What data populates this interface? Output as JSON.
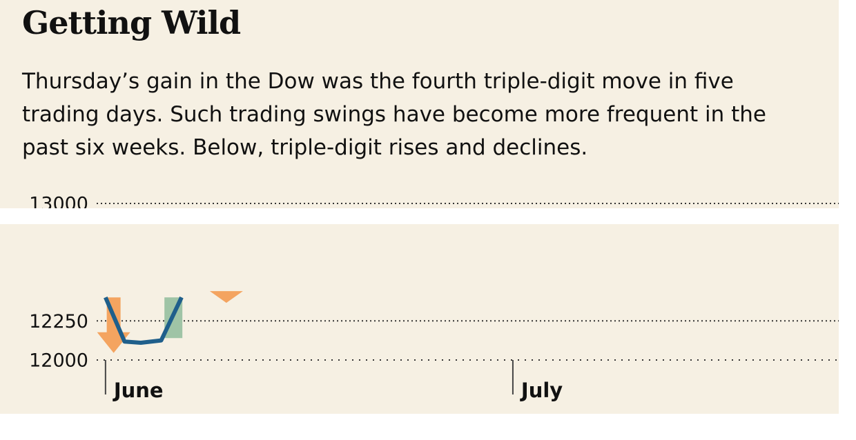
{
  "chart_data": {
    "type": "line",
    "title": "Getting Wild",
    "subtitle": [
      "Thursday’s gain in the Dow was the fourth triple-digit move in five",
      "trading days. Such trading swings have become more frequent in the",
      "past six weeks. Below, triple-digit rises and declines."
    ],
    "x": [
      0,
      1.4,
      2.6,
      4.1,
      5.6
    ],
    "series": [
      {
        "color": "#1f5f8b",
        "values": [
          12400,
          12118,
          12110,
          12125,
          12400
        ]
      }
    ],
    "declines": [
      {
        "x": 0.6,
        "start": 12400,
        "end": 12045,
        "color": "#f4a460"
      },
      {
        "x": 8.9,
        "start": 12440,
        "end": 12365,
        "color": "#f4a460"
      }
    ],
    "rises": [
      {
        "x": 5.0,
        "start": 12140,
        "end": 12400,
        "color": "#9fc4a6"
      }
    ],
    "xlim": [
      -0.5,
      54
    ],
    "xticks": [
      {
        "value": 0,
        "label": "June"
      },
      {
        "value": 30,
        "label": "July"
      }
    ],
    "ylim": [
      12000,
      13000
    ],
    "yticks": [
      12000,
      12250,
      13000
    ],
    "grid": true
  }
}
